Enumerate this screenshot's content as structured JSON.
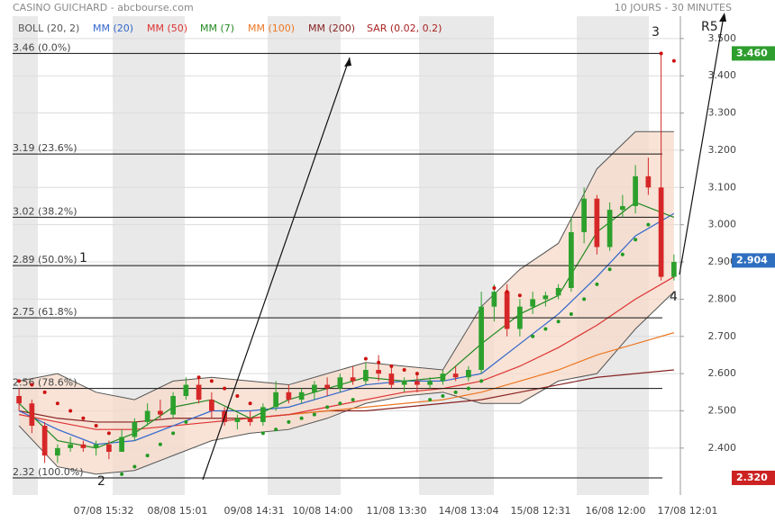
{
  "chart_data": {
    "type": "candlestick",
    "title": "CASINO GUICHARD - abcbourse.com",
    "subtitle": "10 JOURS - 30 MINUTES",
    "x_labels": [
      "07/08 15:32",
      "08/08 15:01",
      "09/08 14:31",
      "10/08 14:00",
      "11/08 13:30",
      "14/08 13:04",
      "15/08 12:31",
      "16/08 12:00",
      "17/08 12:01"
    ],
    "xlim": [
      -0.5,
      51.5
    ],
    "ylim": [
      2.274,
      3.56
    ],
    "yticks": [
      {
        "value": 2.4,
        "label": "2.400"
      },
      {
        "value": 2.5,
        "label": "2.500"
      },
      {
        "value": 2.6,
        "label": "2.600"
      },
      {
        "value": 2.7,
        "label": "2.700"
      },
      {
        "value": 2.8,
        "label": "2.800"
      },
      {
        "value": 2.9,
        "label": "2.900"
      },
      {
        "value": 3.0,
        "label": "3.000"
      },
      {
        "value": 3.1,
        "label": "3.100"
      },
      {
        "value": 3.2,
        "label": "3.200"
      },
      {
        "value": 3.3,
        "label": "3.300"
      },
      {
        "value": 3.4,
        "label": "3.400"
      },
      {
        "value": 3.5,
        "label": "3.500"
      }
    ],
    "grid": true,
    "up_color": "#2ca02c",
    "down_color": "#d62728",
    "candles": {
      "open": [
        2.54,
        2.52,
        2.46,
        2.38,
        2.4,
        2.41,
        2.4,
        2.41,
        2.39,
        2.43,
        2.47,
        2.5,
        2.49,
        2.54,
        2.57,
        2.53,
        2.5,
        2.47,
        2.48,
        2.47,
        2.51,
        2.55,
        2.53,
        2.55,
        2.57,
        2.56,
        2.59,
        2.58,
        2.61,
        2.6,
        2.57,
        2.58,
        2.57,
        2.58,
        2.6,
        2.59,
        2.61,
        2.78,
        2.82,
        2.72,
        2.78,
        2.8,
        2.81,
        2.83,
        2.98,
        3.07,
        2.94,
        3.04,
        3.05,
        3.13,
        3.1,
        2.86
      ],
      "high": [
        2.56,
        2.53,
        2.47,
        2.41,
        2.43,
        2.42,
        2.42,
        2.42,
        2.45,
        2.48,
        2.52,
        2.53,
        2.55,
        2.59,
        2.59,
        2.55,
        2.51,
        2.49,
        2.5,
        2.52,
        2.58,
        2.57,
        2.56,
        2.58,
        2.59,
        2.6,
        2.62,
        2.63,
        2.65,
        2.62,
        2.59,
        2.6,
        2.59,
        2.61,
        2.62,
        2.62,
        2.82,
        2.84,
        2.84,
        2.8,
        2.82,
        2.82,
        2.84,
        3.02,
        3.1,
        3.08,
        3.06,
        3.08,
        3.16,
        3.18,
        3.46,
        2.92
      ],
      "low": [
        2.5,
        2.44,
        2.36,
        2.36,
        2.39,
        2.39,
        2.38,
        2.37,
        2.39,
        2.42,
        2.46,
        2.48,
        2.48,
        2.53,
        2.52,
        2.48,
        2.46,
        2.45,
        2.46,
        2.46,
        2.5,
        2.52,
        2.52,
        2.53,
        2.54,
        2.55,
        2.57,
        2.57,
        2.58,
        2.56,
        2.55,
        2.55,
        2.56,
        2.57,
        2.58,
        2.58,
        2.6,
        2.74,
        2.7,
        2.7,
        2.76,
        2.78,
        2.8,
        2.82,
        2.95,
        2.92,
        2.93,
        3.02,
        3.03,
        3.08,
        2.85,
        2.85
      ],
      "close": [
        2.52,
        2.46,
        2.38,
        2.4,
        2.41,
        2.4,
        2.41,
        2.39,
        2.43,
        2.47,
        2.5,
        2.49,
        2.54,
        2.57,
        2.53,
        2.5,
        2.47,
        2.48,
        2.47,
        2.51,
        2.55,
        2.53,
        2.55,
        2.57,
        2.56,
        2.59,
        2.58,
        2.61,
        2.6,
        2.57,
        2.58,
        2.57,
        2.58,
        2.6,
        2.59,
        2.61,
        2.78,
        2.82,
        2.72,
        2.78,
        2.8,
        2.81,
        2.83,
        2.98,
        3.07,
        2.94,
        3.04,
        3.05,
        3.13,
        3.1,
        2.86,
        2.9
      ]
    },
    "overlay_x": [
      0,
      3,
      6,
      9,
      12,
      15,
      18,
      21,
      24,
      27,
      30,
      33,
      36,
      39,
      42,
      45,
      48,
      51
    ],
    "series": [
      {
        "name": "BOLL (20, 2)",
        "color": "#555555",
        "fill": "#f6d9c8",
        "upper": [
          2.58,
          2.6,
          2.55,
          2.53,
          2.58,
          2.59,
          2.58,
          2.57,
          2.6,
          2.63,
          2.62,
          2.61,
          2.78,
          2.88,
          2.95,
          3.15,
          3.25,
          3.25
        ],
        "lower": [
          2.46,
          2.35,
          2.33,
          2.34,
          2.38,
          2.42,
          2.44,
          2.45,
          2.48,
          2.52,
          2.54,
          2.55,
          2.52,
          2.52,
          2.58,
          2.6,
          2.72,
          2.82
        ]
      },
      {
        "name": "MM (20)",
        "color": "#3366cc",
        "values": [
          2.5,
          2.45,
          2.41,
          2.42,
          2.46,
          2.5,
          2.5,
          2.51,
          2.54,
          2.57,
          2.58,
          2.58,
          2.6,
          2.68,
          2.76,
          2.86,
          2.97,
          3.03
        ]
      },
      {
        "name": "MM (50)",
        "color": "#dd3333",
        "values": [
          2.49,
          2.47,
          2.45,
          2.45,
          2.46,
          2.47,
          2.48,
          2.49,
          2.51,
          2.53,
          2.55,
          2.56,
          2.58,
          2.62,
          2.67,
          2.73,
          2.8,
          2.86
        ]
      },
      {
        "name": "MM (7)",
        "color": "#228822",
        "values": [
          2.52,
          2.42,
          2.4,
          2.44,
          2.51,
          2.53,
          2.48,
          2.53,
          2.56,
          2.59,
          2.58,
          2.59,
          2.68,
          2.76,
          2.81,
          2.98,
          3.06,
          3.02
        ]
      },
      {
        "name": "MM (100)",
        "color": "#ee7722",
        "values": [
          null,
          null,
          null,
          null,
          null,
          null,
          2.48,
          2.49,
          2.5,
          2.51,
          2.52,
          2.53,
          2.55,
          2.58,
          2.61,
          2.65,
          2.68,
          2.71
        ]
      },
      {
        "name": "MM (200)",
        "color": "#882222",
        "values": [
          2.5,
          2.48,
          2.47,
          2.47,
          2.48,
          2.48,
          2.48,
          2.49,
          2.5,
          2.5,
          2.51,
          2.52,
          2.53,
          2.55,
          2.57,
          2.59,
          2.6,
          2.61
        ]
      },
      {
        "name": "SAR (0.02, 0.2)",
        "color": "#aa2222",
        "values": [
          2.58,
          2.57,
          2.55,
          2.52,
          2.5,
          2.48,
          2.46,
          2.44,
          2.33,
          2.35,
          2.38,
          2.41,
          2.44,
          2.47,
          2.59,
          2.58,
          2.56,
          2.54,
          2.52,
          2.44,
          2.45,
          2.47,
          2.48,
          2.49,
          2.51,
          2.52,
          2.53,
          2.64,
          2.63,
          2.62,
          2.61,
          2.6,
          2.53,
          2.54,
          2.55,
          2.56,
          2.58,
          2.83,
          2.82,
          2.81,
          2.7,
          2.72,
          2.74,
          2.76,
          2.8,
          2.84,
          2.88,
          2.92,
          2.96,
          3.0,
          3.46,
          3.44
        ]
      }
    ],
    "fib_levels": [
      {
        "value": 3.46,
        "label": "3.46 (0.0%)"
      },
      {
        "value": 3.19,
        "label": "3.19 (23.6%)"
      },
      {
        "value": 3.02,
        "label": "3.02 (38.2%)"
      },
      {
        "value": 2.89,
        "label": "2.89 (50.0%)"
      },
      {
        "value": 2.75,
        "label": "2.75 (61.8%)"
      },
      {
        "value": 2.56,
        "label": "2.56 (78.6%)"
      },
      {
        "value": 2.32,
        "label": "2.32 (100.0%)"
      }
    ],
    "price_tags": [
      {
        "value": 3.46,
        "label": "3.460",
        "color": "#2e9e2e"
      },
      {
        "value": 2.904,
        "label": "2.904",
        "color": "#2f6fc0"
      },
      {
        "value": 2.32,
        "label": "2.320",
        "color": "#cc2222"
      }
    ],
    "annotations": [
      "1",
      "2",
      "3",
      "4",
      "R5"
    ]
  }
}
